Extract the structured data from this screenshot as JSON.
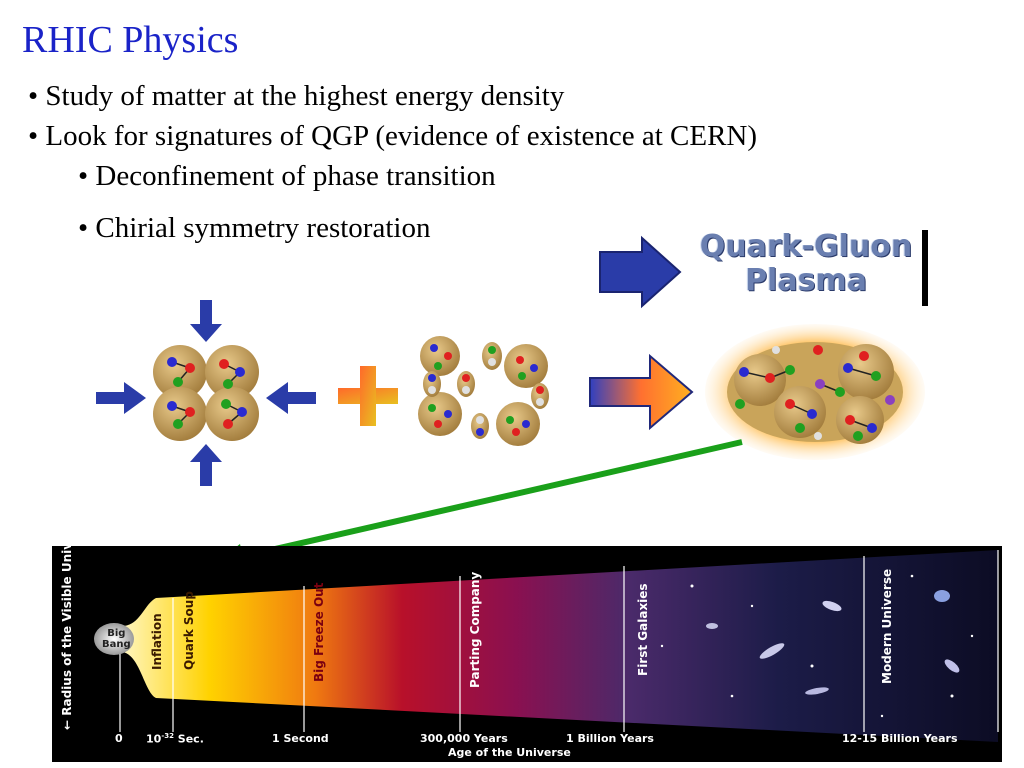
{
  "slide": {
    "title": "RHIC Physics",
    "bullets": [
      "• Study of matter at the highest energy density",
      "• Look for signatures of QGP (evidence of existence at CERN)",
      "• Deconfinement of phase transition",
      "• Chirial symmetry restoration"
    ],
    "qgp_label_line1": "Quark-Gluon",
    "qgp_label_line2": "Plasma"
  },
  "timeline": {
    "y_axis_label": "← Radius of the Visible Universe →",
    "big_bang": [
      "Big",
      "Bang"
    ],
    "epochs": [
      "Inflation",
      "Quark Soup",
      "Big Freeze Out",
      "Parting Company",
      "First Galaxies",
      "Modern Universe"
    ],
    "ticks": [
      "0",
      "10-32 Sec.",
      "1 Second",
      "300,000 Years",
      "1 Billion Years",
      "12-15 Billion Years"
    ],
    "tick_sup": "-32",
    "x_axis_label": "Age of the Universe"
  },
  "colors": {
    "title": "#1a23c8",
    "arrow_blue": "#2a3ca8",
    "pointer_green": "#1aa01a",
    "nucleon": "#c9a45a"
  }
}
